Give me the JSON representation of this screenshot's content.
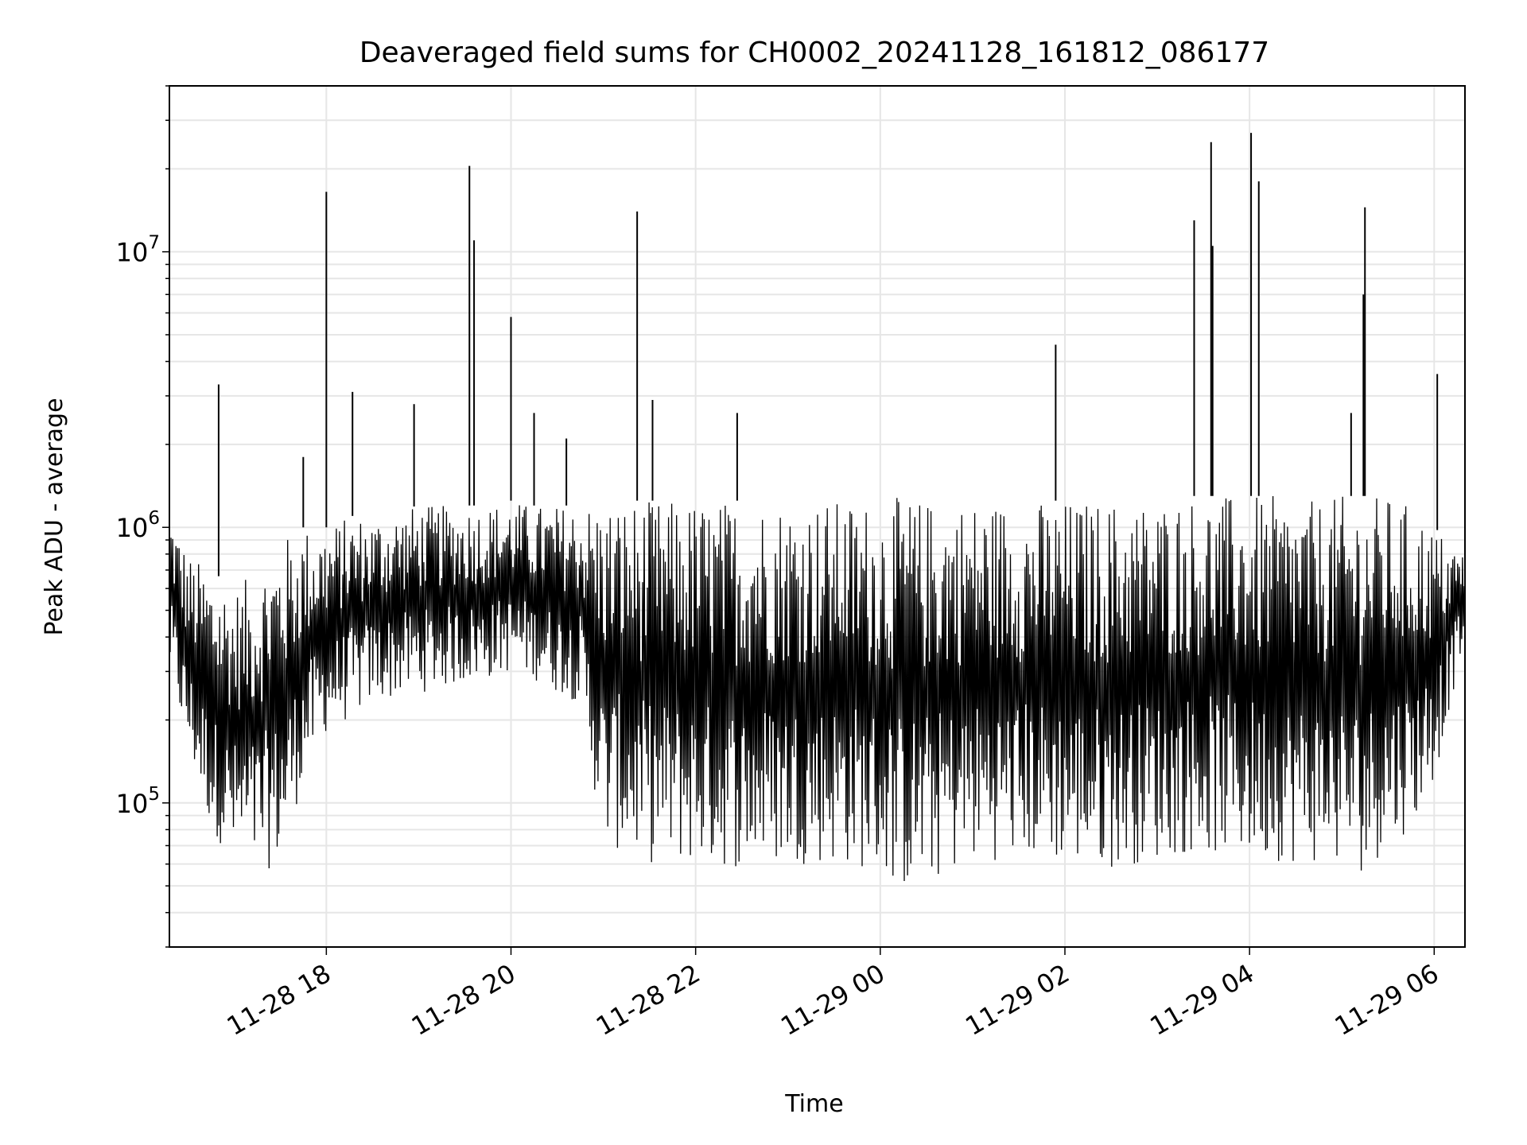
{
  "chart_data": {
    "type": "line",
    "title": "Deaveraged field sums for CH0002_20241128_161812_086177",
    "xlabel": "Time",
    "ylabel": "Peak ADU - average",
    "y_scale": "log",
    "ylim": [
      30000,
      40000000
    ],
    "xlim": [
      "2024-11-28 16:18",
      "2024-11-29 06:20"
    ],
    "grid": true,
    "legend": "none",
    "line_color": "#000000",
    "x_ticks": [
      {
        "t": "2024-11-28 18:00",
        "label": "11-28 18"
      },
      {
        "t": "2024-11-28 20:00",
        "label": "11-28 20"
      },
      {
        "t": "2024-11-28 22:00",
        "label": "11-28 22"
      },
      {
        "t": "2024-11-29 00:00",
        "label": "11-29 00"
      },
      {
        "t": "2024-11-29 02:00",
        "label": "11-29 02"
      },
      {
        "t": "2024-11-29 04:00",
        "label": "11-29 04"
      },
      {
        "t": "2024-11-29 06:00",
        "label": "11-29 06"
      }
    ],
    "y_ticks": [
      {
        "value": 100000,
        "base": "10",
        "exp": "5"
      },
      {
        "value": 1000000,
        "base": "10",
        "exp": "6"
      },
      {
        "value": 10000000,
        "base": "10",
        "exp": "7"
      }
    ],
    "series": [
      {
        "x": [
          "2024-11-28 16:18",
          "2024-11-28 16:30",
          "2024-11-28 16:45",
          "2024-11-28 17:00",
          "2024-11-28 17:15",
          "2024-11-28 17:30",
          "2024-11-28 17:45",
          "2024-11-28 18:00",
          "2024-11-28 18:15",
          "2024-11-28 18:30",
          "2024-11-28 18:45",
          "2024-11-28 19:00",
          "2024-11-28 19:15",
          "2024-11-28 19:30",
          "2024-11-28 19:45",
          "2024-11-28 20:00",
          "2024-11-28 20:15",
          "2024-11-28 20:30",
          "2024-11-28 20:45",
          "2024-11-28 21:00",
          "2024-11-28 21:15",
          "2024-11-28 21:30",
          "2024-11-28 21:45",
          "2024-11-28 22:00",
          "2024-11-28 22:15",
          "2024-11-28 22:30",
          "2024-11-28 22:45",
          "2024-11-28 23:00",
          "2024-11-28 23:15",
          "2024-11-28 23:30",
          "2024-11-28 23:45",
          "2024-11-29 00:00",
          "2024-11-29 00:15",
          "2024-11-29 00:30",
          "2024-11-29 00:45",
          "2024-11-29 01:00",
          "2024-11-29 01:15",
          "2024-11-29 01:30",
          "2024-11-29 01:45",
          "2024-11-29 02:00",
          "2024-11-29 02:15",
          "2024-11-29 02:30",
          "2024-11-29 02:45",
          "2024-11-29 03:00",
          "2024-11-29 03:15",
          "2024-11-29 03:30",
          "2024-11-29 03:45",
          "2024-11-29 04:00",
          "2024-11-29 04:15",
          "2024-11-29 04:30",
          "2024-11-29 04:45",
          "2024-11-29 05:00",
          "2024-11-29 05:15",
          "2024-11-29 05:30",
          "2024-11-29 05:45",
          "2024-11-29 06:00",
          "2024-11-29 06:20"
        ],
        "low": [
          300000,
          150000,
          80000,
          60000,
          55000,
          60000,
          120000,
          180000,
          200000,
          230000,
          240000,
          250000,
          260000,
          270000,
          280000,
          300000,
          280000,
          250000,
          230000,
          70000,
          65000,
          60000,
          60000,
          60000,
          58000,
          58000,
          58000,
          60000,
          60000,
          60000,
          58000,
          55000,
          48000,
          50000,
          55000,
          60000,
          62000,
          62000,
          62000,
          60000,
          58000,
          58000,
          60000,
          62000,
          65000,
          65000,
          64000,
          62000,
          62000,
          60000,
          60000,
          58000,
          55000,
          70000,
          80000,
          120000,
          400000
        ],
        "high": [
          1200000,
          800000,
          700000,
          600000,
          700000,
          900000,
          1000000,
          1000000,
          1100000,
          1100000,
          1150000,
          1200000,
          1200000,
          1200000,
          1200000,
          1250000,
          1200000,
          1200000,
          1200000,
          1250000,
          1250000,
          1250000,
          1250000,
          1250000,
          1250000,
          1250000,
          1250000,
          1250000,
          1250000,
          1250000,
          1250000,
          1250000,
          1300000,
          1250000,
          1250000,
          1250000,
          1250000,
          1250000,
          1250000,
          1250000,
          1250000,
          1250000,
          1250000,
          1250000,
          1300000,
          1300000,
          1300000,
          1300000,
          1300000,
          1250000,
          1250000,
          1300000,
          1300000,
          1300000,
          1200000,
          1000000,
          800000
        ]
      }
    ],
    "spikes": [
      {
        "t": "2024-11-28 16:50",
        "value": 3300000
      },
      {
        "t": "2024-11-28 17:45",
        "value": 1800000
      },
      {
        "t": "2024-11-28 18:00",
        "value": 16500000
      },
      {
        "t": "2024-11-28 18:17",
        "value": 3100000
      },
      {
        "t": "2024-11-28 18:57",
        "value": 2800000
      },
      {
        "t": "2024-11-28 19:33",
        "value": 20500000
      },
      {
        "t": "2024-11-28 19:36",
        "value": 11000000
      },
      {
        "t": "2024-11-28 20:00",
        "value": 5800000
      },
      {
        "t": "2024-11-28 20:15",
        "value": 2600000
      },
      {
        "t": "2024-11-28 20:36",
        "value": 2100000
      },
      {
        "t": "2024-11-28 21:22",
        "value": 14000000
      },
      {
        "t": "2024-11-28 21:32",
        "value": 2900000
      },
      {
        "t": "2024-11-28 22:27",
        "value": 2600000
      },
      {
        "t": "2024-11-29 01:54",
        "value": 4600000
      },
      {
        "t": "2024-11-29 03:24",
        "value": 13000000
      },
      {
        "t": "2024-11-29 03:35",
        "value": 25000000
      },
      {
        "t": "2024-11-29 03:36",
        "value": 10500000
      },
      {
        "t": "2024-11-29 04:01",
        "value": 27000000
      },
      {
        "t": "2024-11-29 04:06",
        "value": 18000000
      },
      {
        "t": "2024-11-29 05:06",
        "value": 2600000
      },
      {
        "t": "2024-11-29 05:15",
        "value": 14500000
      },
      {
        "t": "2024-11-29 05:14",
        "value": 7000000
      },
      {
        "t": "2024-11-29 06:02",
        "value": 3600000
      }
    ]
  }
}
